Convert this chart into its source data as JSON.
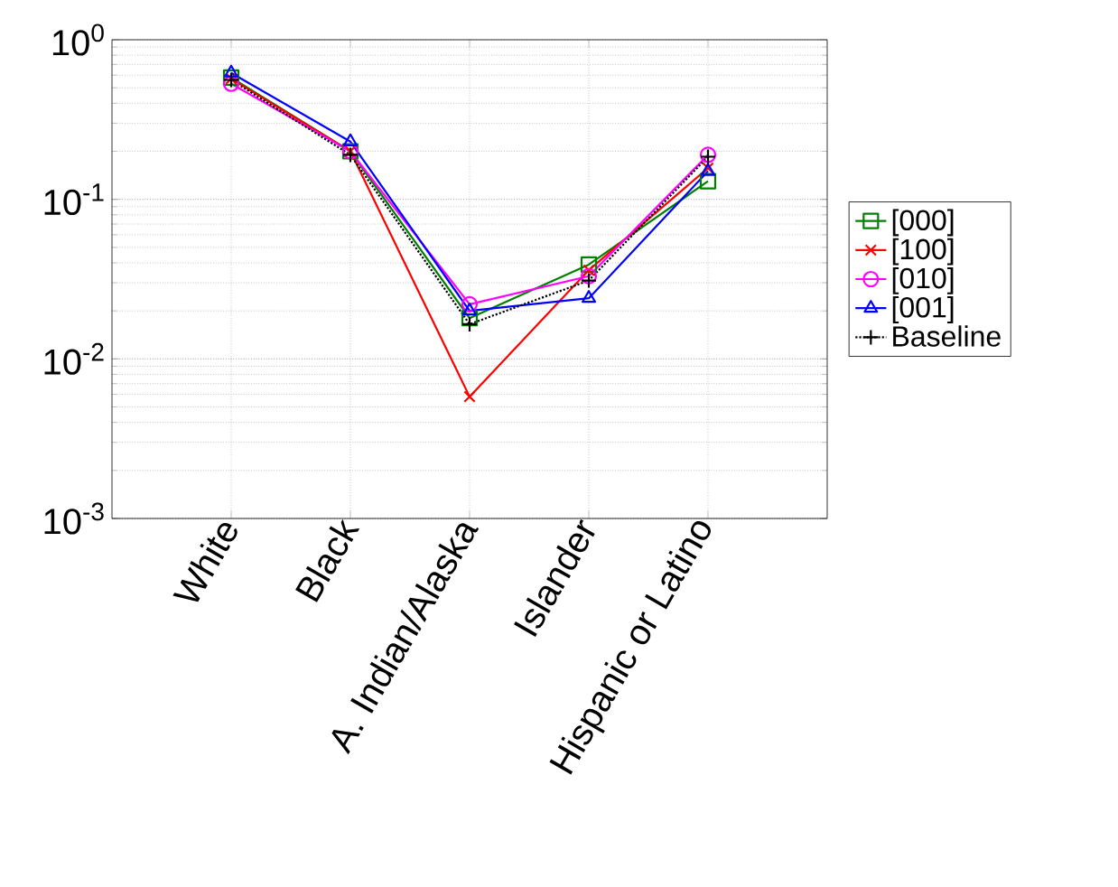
{
  "chart_data": {
    "type": "line",
    "categories": [
      "White",
      "Black",
      "A. Indian/Alaska",
      "Islander",
      "Hispanic or Latino"
    ],
    "series": [
      {
        "name": "[000]",
        "color": "#008000",
        "marker": "square",
        "line_style": "solid",
        "values": [
          0.58,
          0.2,
          0.018,
          0.039,
          0.13
        ]
      },
      {
        "name": "[100]",
        "color": "#ff0000",
        "marker": "cross",
        "line_style": "solid",
        "values": [
          0.57,
          0.2,
          0.0058,
          0.036,
          0.157
        ]
      },
      {
        "name": "[010]",
        "color": "#ff00ff",
        "marker": "circle",
        "line_style": "solid",
        "values": [
          0.53,
          0.2,
          0.022,
          0.033,
          0.19
        ]
      },
      {
        "name": "[001]",
        "color": "#0000ff",
        "marker": "triangle",
        "line_style": "solid",
        "values": [
          0.62,
          0.23,
          0.02,
          0.024,
          0.15
        ]
      },
      {
        "name": "Baseline",
        "color": "#000000",
        "marker": "plus",
        "line_style": "dotted",
        "values": [
          0.56,
          0.19,
          0.0165,
          0.031,
          0.185
        ]
      }
    ],
    "log": "y",
    "ylim": [
      0.001,
      1
    ],
    "yticks": [
      {
        "value": 0.001,
        "label": "10$^{-3}$"
      },
      {
        "value": 0.01,
        "label": "10$^{-2}$"
      },
      {
        "value": 0.1,
        "label": "10$^{-1}$"
      },
      {
        "value": 1,
        "label": "10$^{0}$"
      }
    ],
    "grid": true,
    "legend": "right"
  }
}
